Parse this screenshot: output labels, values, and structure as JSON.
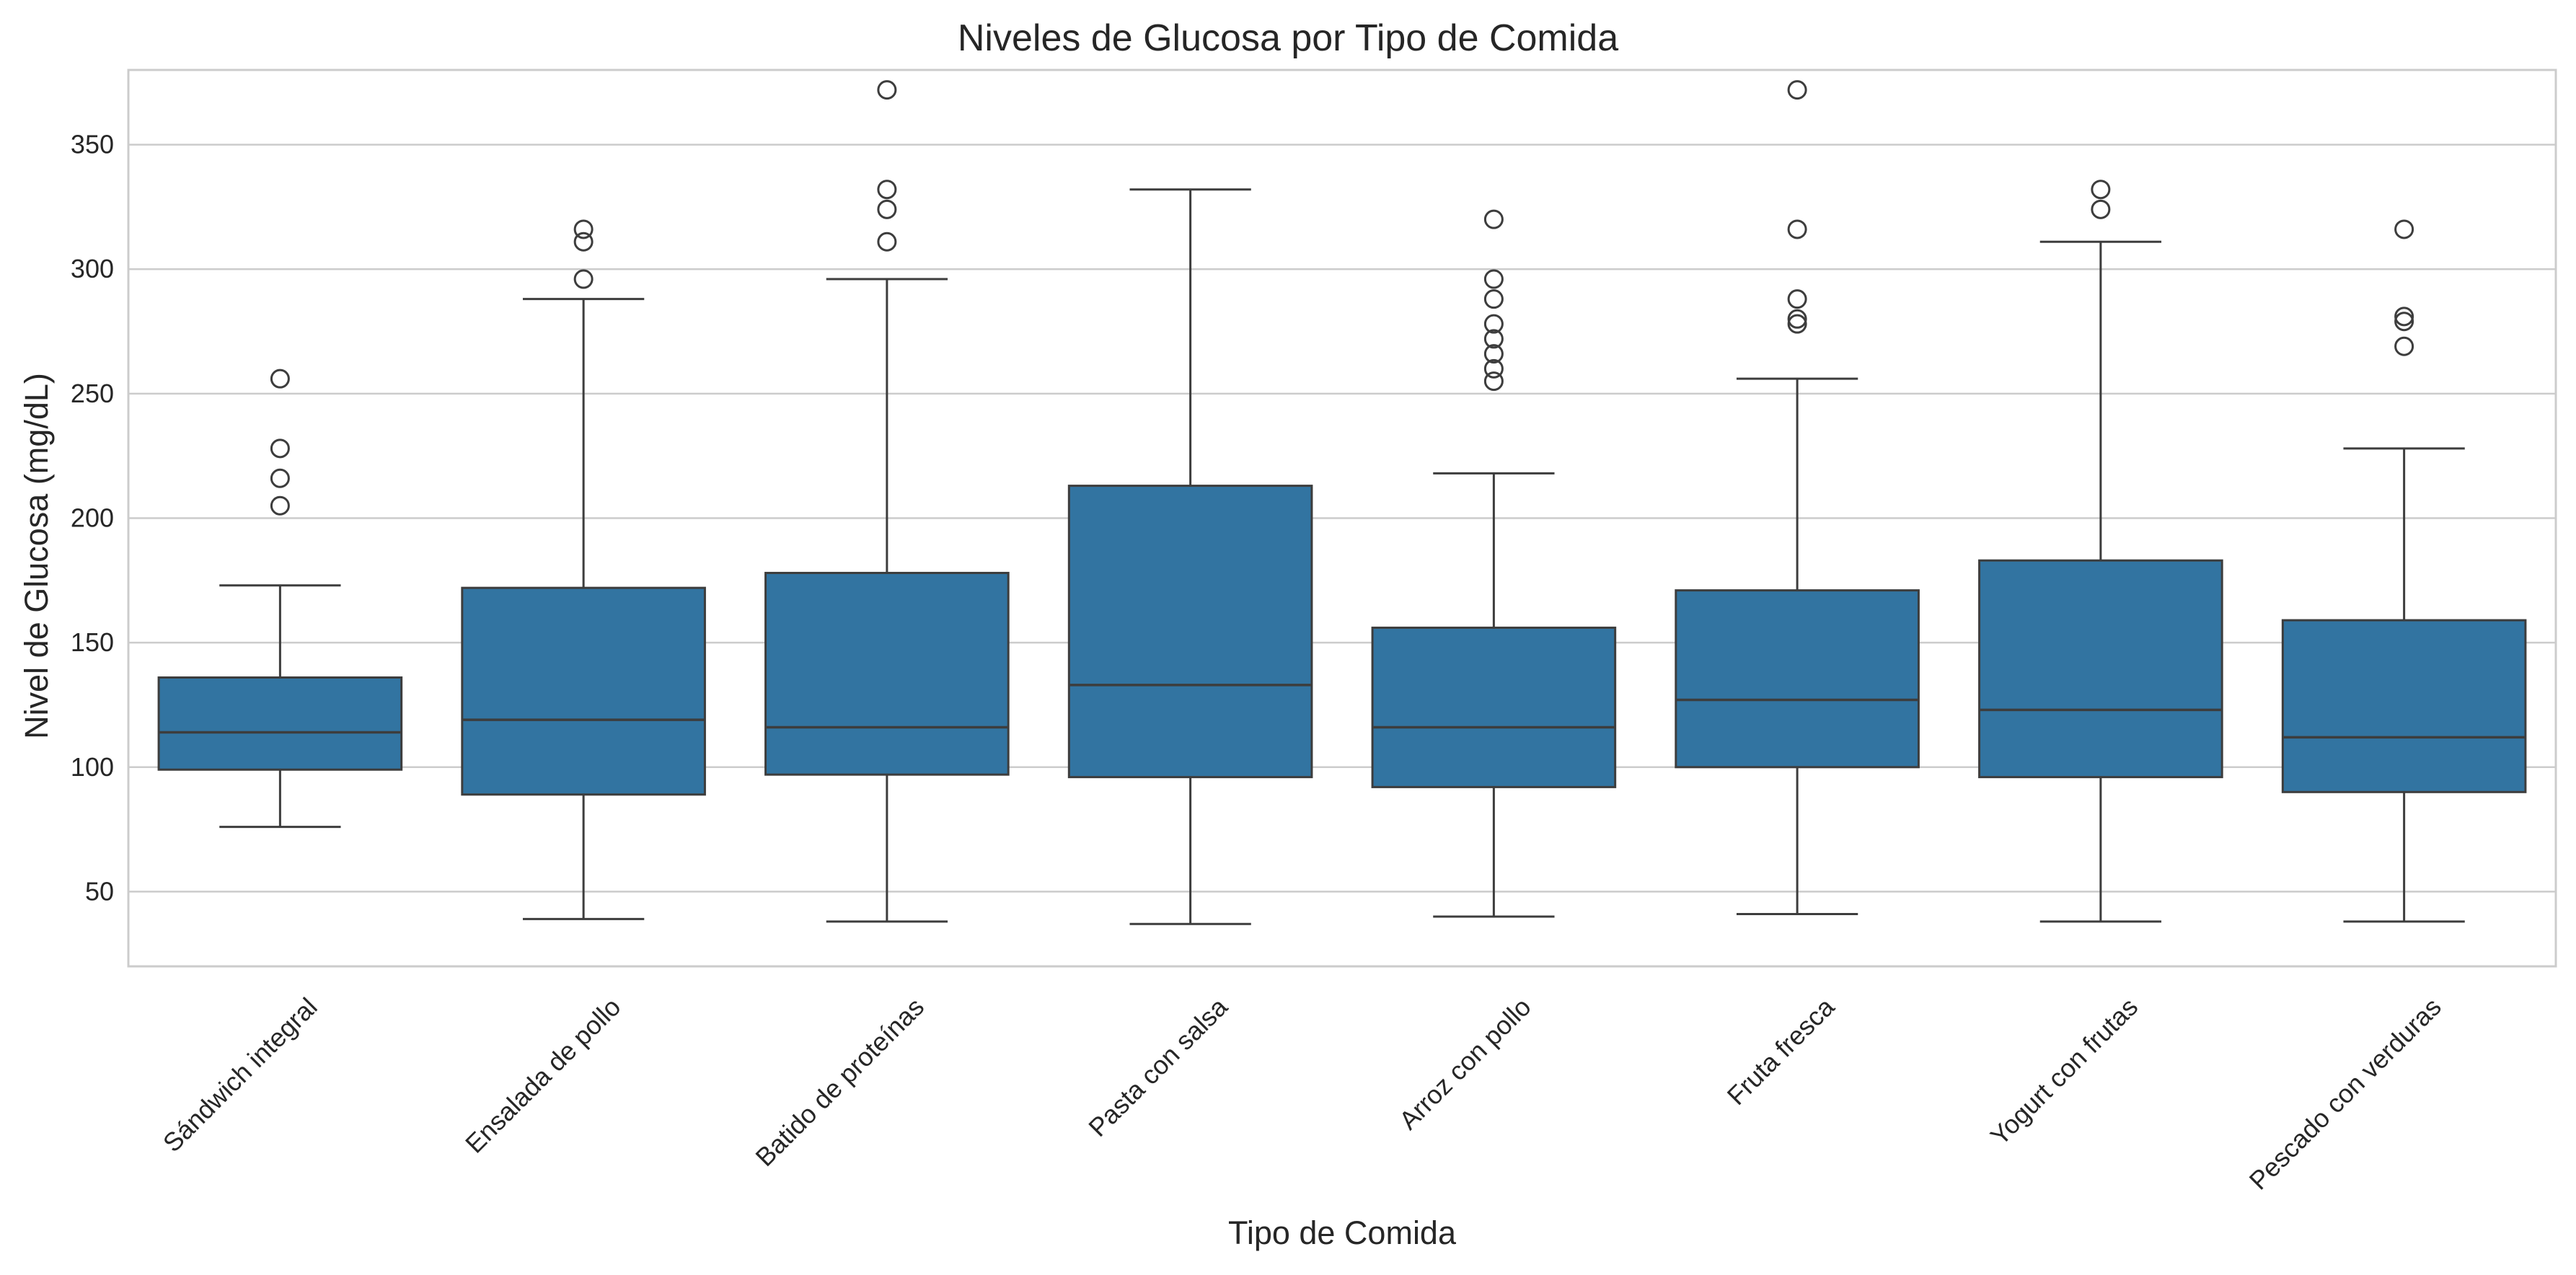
{
  "chart_data": {
    "type": "box",
    "title": "Niveles de Glucosa por Tipo de Comida",
    "xlabel": "Tipo de Comida",
    "ylabel": "Nivel de Glucosa (mg/dL)",
    "ylim": [
      20,
      380
    ],
    "yticks": [
      50,
      100,
      150,
      200,
      250,
      300,
      350
    ],
    "grid": true,
    "box_color": "#3274a1",
    "line_color": "#3d3d3d",
    "categories": [
      "Sándwich integral",
      "Ensalada de pollo",
      "Batido de proteínas",
      "Pasta con salsa",
      "Arroz con pollo",
      "Fruta fresca",
      "Yogurt con frutas",
      "Pescado con verduras"
    ],
    "boxes": [
      {
        "whisker_low": 76,
        "q1": 99,
        "median": 114,
        "q3": 136,
        "whisker_high": 173,
        "outliers": [
          205,
          216,
          228,
          256
        ]
      },
      {
        "whisker_low": 39,
        "q1": 89,
        "median": 119,
        "q3": 172,
        "whisker_high": 288,
        "outliers": [
          296,
          311,
          316
        ]
      },
      {
        "whisker_low": 38,
        "q1": 97,
        "median": 116,
        "q3": 178,
        "whisker_high": 296,
        "outliers": [
          311,
          324,
          332,
          372
        ]
      },
      {
        "whisker_low": 37,
        "q1": 96,
        "median": 133,
        "q3": 213,
        "whisker_high": 332,
        "outliers": []
      },
      {
        "whisker_low": 40,
        "q1": 92,
        "median": 116,
        "q3": 156,
        "whisker_high": 218,
        "outliers": [
          255,
          260,
          266,
          272,
          278,
          288,
          296,
          320
        ]
      },
      {
        "whisker_low": 41,
        "q1": 100,
        "median": 127,
        "q3": 171,
        "whisker_high": 256,
        "outliers": [
          278,
          280,
          288,
          316,
          372
        ]
      },
      {
        "whisker_low": 38,
        "q1": 96,
        "median": 123,
        "q3": 183,
        "whisker_high": 311,
        "outliers": [
          324,
          332
        ]
      },
      {
        "whisker_low": 38,
        "q1": 90,
        "median": 112,
        "q3": 159,
        "whisker_high": 228,
        "outliers": [
          269,
          279,
          281,
          316
        ]
      }
    ]
  }
}
